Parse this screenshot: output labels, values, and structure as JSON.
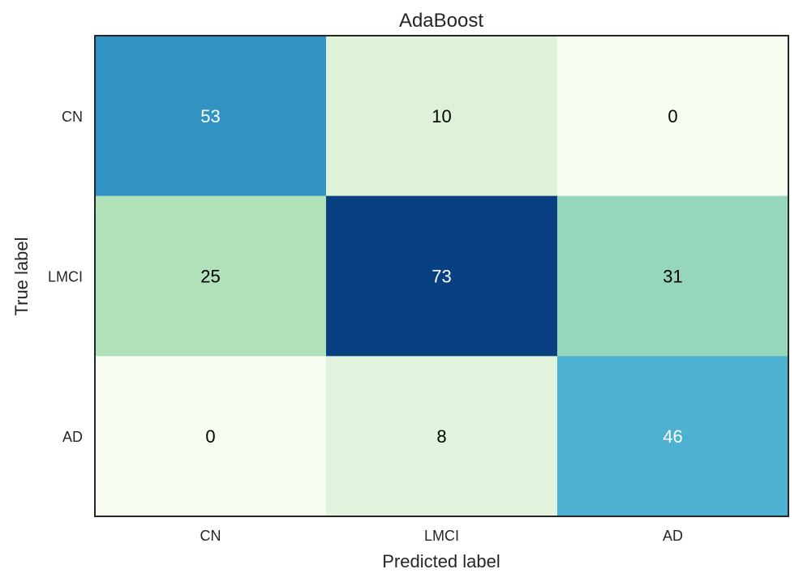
{
  "chart_data": {
    "type": "heatmap",
    "title": "AdaBoost",
    "xlabel": "Predicted label",
    "ylabel": "True label",
    "x_categories": [
      "CN",
      "LMCI",
      "AD"
    ],
    "y_categories": [
      "CN",
      "LMCI",
      "AD"
    ],
    "values": [
      [
        53,
        10,
        0
      ],
      [
        25,
        73,
        31
      ],
      [
        0,
        8,
        46
      ]
    ],
    "colormap": "GnBu",
    "grid": false,
    "colorbar": false
  }
}
